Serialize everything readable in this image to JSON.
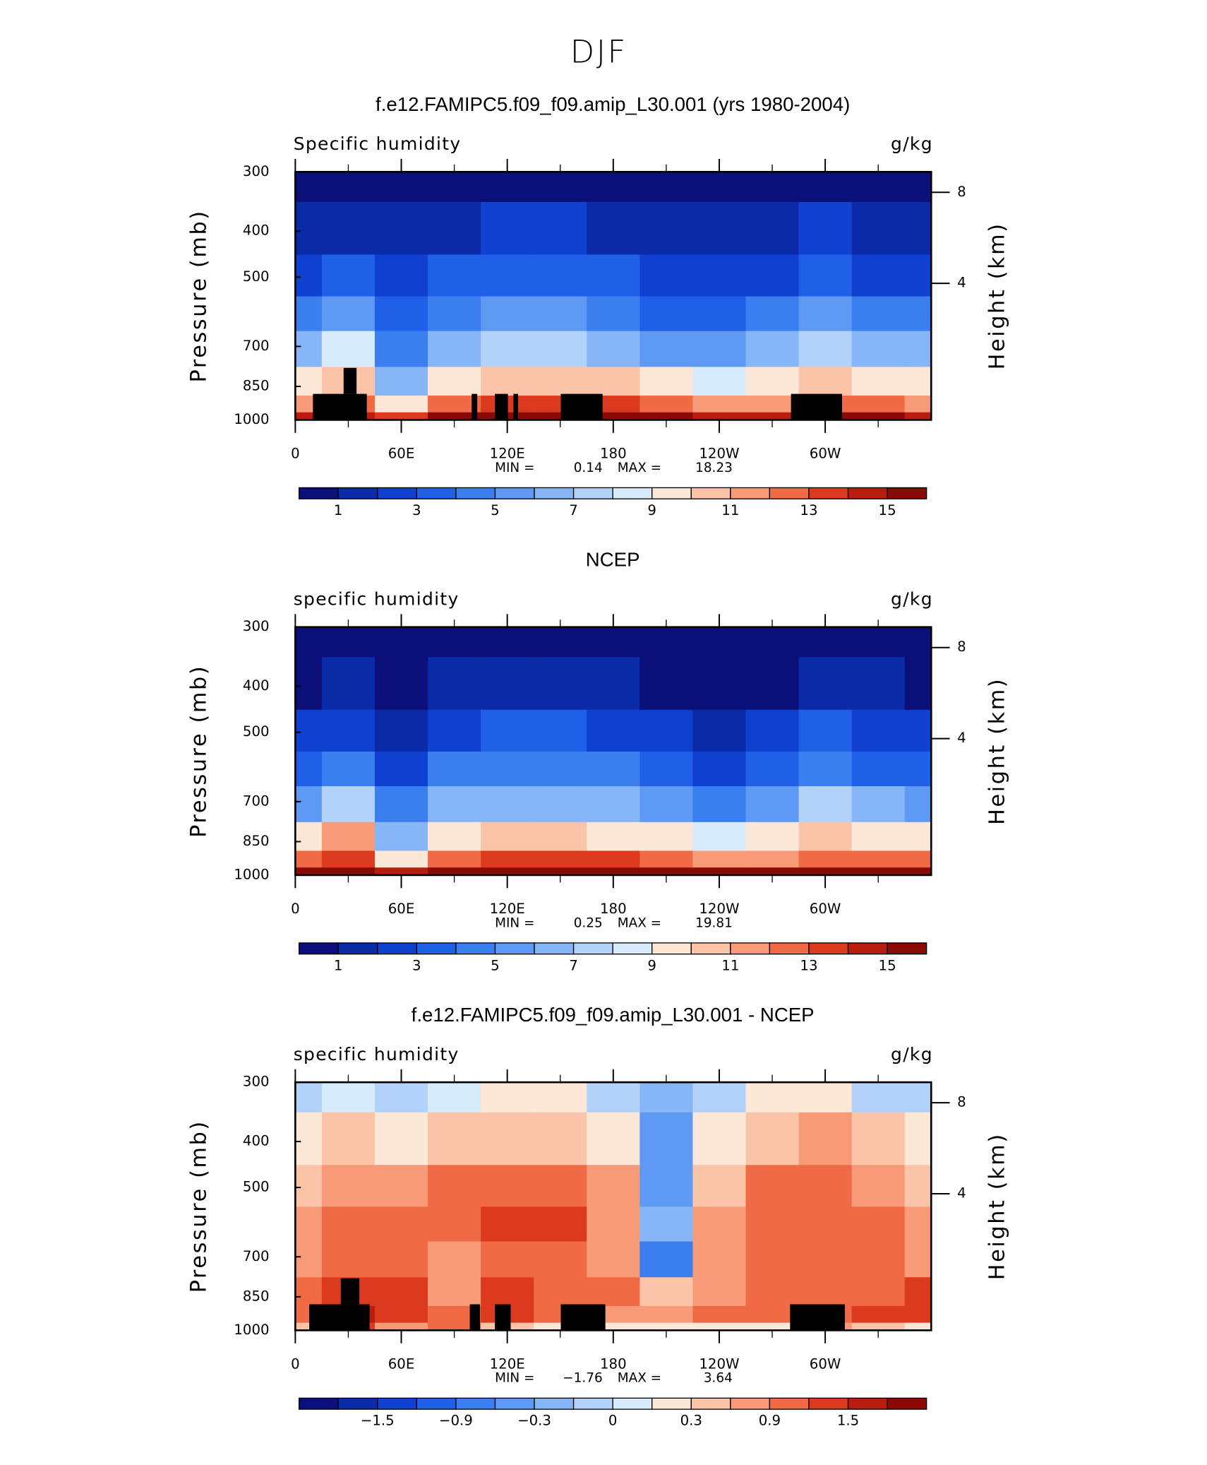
{
  "title": "DJF",
  "chart_data": [
    {
      "type": "contour",
      "title": "f.e12.FAMIPC5.f09_f09.amip_L30.001 (yrs 1980-2004)",
      "left_label": "Specific humidity",
      "right_label": "g/kg",
      "ylabel": "Pressure (mb)",
      "y2label": "Height (km)",
      "x": [
        0,
        30,
        60,
        90,
        120,
        150,
        180,
        210,
        240,
        270,
        300,
        330,
        360
      ],
      "xlim": [
        0,
        360
      ],
      "xticks": [
        0,
        {
          "value": 60,
          "label": "60E"
        },
        {
          "value": 120,
          "label": "120E"
        },
        180,
        {
          "value": 240,
          "label": "120W"
        },
        {
          "value": 300,
          "label": "60W"
        }
      ],
      "y": [
        1000,
        925,
        850,
        700,
        600,
        500,
        400,
        300
      ],
      "ylim": [
        1000,
        300
      ],
      "ylog": true,
      "yticks": [
        300,
        400,
        500,
        700,
        850,
        1000
      ],
      "y2lim": [
        -2,
        8.9
      ],
      "y2ticks": [
        4,
        8
      ],
      "values": [
        [
          14,
          14,
          13,
          15,
          16,
          16,
          16,
          15,
          14,
          14,
          15,
          15,
          14
        ],
        [
          11,
          12,
          9,
          12,
          13,
          13,
          13,
          12,
          11,
          11,
          12,
          12,
          11
        ],
        [
          9,
          10,
          6,
          9,
          10,
          10,
          10,
          9,
          8,
          9,
          10,
          9,
          9
        ],
        [
          6,
          8,
          4,
          6,
          7,
          7,
          6,
          5,
          5,
          6,
          7,
          6,
          6
        ],
        [
          4,
          5,
          3,
          4,
          5,
          5,
          4,
          3,
          3,
          4,
          5,
          4,
          4
        ],
        [
          2.5,
          3,
          2,
          3,
          3.5,
          3.5,
          3,
          2,
          2,
          2.5,
          3.5,
          2.5,
          2.5
        ],
        [
          1.5,
          1.5,
          1,
          1.5,
          2,
          2,
          1.5,
          1,
          1,
          1.5,
          2,
          1.5,
          1.5
        ],
        [
          0.5,
          0.5,
          0.5,
          0.5,
          0.6,
          0.7,
          0.5,
          0.3,
          0.3,
          0.4,
          0.6,
          0.5,
          0.4
        ]
      ],
      "levels": [
        1,
        2,
        3,
        4,
        5,
        6,
        7,
        8,
        9,
        10,
        11,
        12,
        13,
        14,
        15
      ],
      "colorbar_ticks": [
        1,
        3,
        5,
        7,
        9,
        11,
        13,
        15
      ],
      "colors": [
        "#0a0f7a",
        "#0b2aa8",
        "#1040d0",
        "#2060e8",
        "#3a7ef0",
        "#5e9af4",
        "#86b6f7",
        "#b2d2fa",
        "#d8ebfc",
        "#fde8d8",
        "#fbc4a8",
        "#f69a78",
        "#ef6a45",
        "#dc3a1e",
        "#b71c0e",
        "#8a0a05"
      ],
      "min_label": "MIN =",
      "min": 0.14,
      "max_label": "MAX =",
      "max": 18.23
    },
    {
      "type": "contour",
      "title": "NCEP",
      "left_label": "specific humidity",
      "right_label": "g/kg",
      "ylabel": "Pressure (mb)",
      "y2label": "Height (km)",
      "x": [
        0,
        30,
        60,
        90,
        120,
        150,
        180,
        210,
        240,
        270,
        300,
        330,
        360
      ],
      "xlim": [
        0,
        360
      ],
      "xticks": [
        0,
        {
          "value": 60,
          "label": "60E"
        },
        {
          "value": 120,
          "label": "120E"
        },
        180,
        {
          "value": 240,
          "label": "120W"
        },
        {
          "value": 300,
          "label": "60W"
        }
      ],
      "y": [
        1000,
        925,
        850,
        700,
        600,
        500,
        400,
        300
      ],
      "ylim": [
        1000,
        300
      ],
      "ylog": true,
      "yticks": [
        300,
        400,
        500,
        700,
        850,
        1000
      ],
      "y2lim": [
        -2,
        8.9
      ],
      "y2ticks": [
        4,
        8
      ],
      "values": [
        [
          15,
          15,
          14,
          16,
          17,
          17,
          17,
          16,
          15,
          15,
          16,
          16,
          15
        ],
        [
          12,
          13,
          9,
          12,
          13,
          13,
          13,
          12,
          11,
          11,
          12,
          12,
          12
        ],
        [
          9,
          11,
          6,
          9,
          10,
          10,
          9,
          9,
          8,
          9,
          10,
          9,
          9
        ],
        [
          5,
          7,
          4,
          6,
          6,
          6,
          6,
          5,
          4,
          5,
          7,
          6,
          5
        ],
        [
          3.5,
          4.5,
          2.5,
          4,
          4.5,
          4.5,
          4,
          3.5,
          2.5,
          3.5,
          4.5,
          3.5,
          3.5
        ],
        [
          2,
          2.5,
          1.5,
          2.5,
          3,
          3,
          2.5,
          2,
          1.5,
          2,
          3,
          2,
          2
        ],
        [
          0.8,
          1,
          0.8,
          1.2,
          1.5,
          1.5,
          1.2,
          0.8,
          0.5,
          0.8,
          1.2,
          1,
          0.8
        ],
        [
          0.3,
          0.3,
          0.3,
          0.4,
          0.5,
          0.5,
          0.4,
          0.3,
          0.25,
          0.3,
          0.4,
          0.3,
          0.3
        ]
      ],
      "levels": [
        1,
        2,
        3,
        4,
        5,
        6,
        7,
        8,
        9,
        10,
        11,
        12,
        13,
        14,
        15
      ],
      "colorbar_ticks": [
        1,
        3,
        5,
        7,
        9,
        11,
        13,
        15
      ],
      "colors": [
        "#0a0f7a",
        "#0b2aa8",
        "#1040d0",
        "#2060e8",
        "#3a7ef0",
        "#5e9af4",
        "#86b6f7",
        "#b2d2fa",
        "#d8ebfc",
        "#fde8d8",
        "#fbc4a8",
        "#f69a78",
        "#ef6a45",
        "#dc3a1e",
        "#b71c0e",
        "#8a0a05"
      ],
      "min_label": "MIN =",
      "min": 0.25,
      "max_label": "MAX =",
      "max": 19.81
    },
    {
      "type": "contour",
      "title": "f.e12.FAMIPC5.f09_f09.amip_L30.001 - NCEP",
      "left_label": "specific humidity",
      "right_label": "g/kg",
      "ylabel": "Pressure (mb)",
      "y2label": "Height (km)",
      "x": [
        0,
        30,
        60,
        90,
        120,
        150,
        180,
        210,
        240,
        270,
        300,
        330,
        360
      ],
      "xlim": [
        0,
        360
      ],
      "xticks": [
        0,
        {
          "value": 60,
          "label": "60E"
        },
        {
          "value": 120,
          "label": "120E"
        },
        180,
        {
          "value": 240,
          "label": "120W"
        },
        {
          "value": 300,
          "label": "60W"
        }
      ],
      "y": [
        1000,
        925,
        850,
        700,
        600,
        500,
        400,
        300
      ],
      "ylim": [
        1000,
        300
      ],
      "ylog": true,
      "yticks": [
        300,
        400,
        500,
        700,
        850,
        1000
      ],
      "y2lim": [
        -2,
        8.9
      ],
      "y2ticks": [
        4,
        8
      ],
      "values": [
        [
          0.3,
          1.2,
          0.6,
          0.9,
          0.3,
          0.2,
          0.2,
          0.2,
          0.2,
          0.2,
          0.6,
          0.3,
          0.2
        ],
        [
          1.0,
          1.6,
          1.4,
          1.0,
          1.2,
          0.9,
          0.8,
          0.6,
          0.9,
          1.0,
          1.0,
          1.2,
          1.4
        ],
        [
          1.0,
          1.3,
          1.4,
          0.6,
          1.2,
          1.0,
          0.9,
          0.3,
          0.8,
          1.1,
          1.0,
          1.0,
          1.2
        ],
        [
          0.7,
          1.0,
          1.0,
          0.6,
          1.1,
          1.0,
          0.8,
          -0.7,
          0.8,
          1.0,
          0.9,
          0.9,
          0.8
        ],
        [
          0.6,
          1.0,
          1.0,
          0.9,
          1.2,
          1.3,
          0.8,
          -0.3,
          0.7,
          1.0,
          1.1,
          1.0,
          0.7
        ],
        [
          0.4,
          0.8,
          0.7,
          0.9,
          1.0,
          1.1,
          0.6,
          -0.4,
          0.5,
          0.9,
          1.1,
          0.8,
          0.5
        ],
        [
          0.1,
          0.3,
          0.2,
          0.4,
          0.5,
          0.5,
          0.2,
          -0.5,
          0.1,
          0.5,
          0.6,
          0.3,
          0.1
        ],
        [
          -0.1,
          0.05,
          -0.1,
          0.05,
          0.2,
          0.1,
          -0.1,
          -0.3,
          -0.1,
          0.2,
          0.1,
          -0.1,
          -0.1
        ]
      ],
      "levels": [
        -1.8,
        -1.5,
        -1.2,
        -0.9,
        -0.6,
        -0.3,
        -0.1,
        0,
        0.1,
        0.3,
        0.6,
        0.9,
        1.2,
        1.5,
        1.8
      ],
      "colorbar_ticks": [
        {
          "value": -1.5,
          "label": "−1.5"
        },
        {
          "value": -0.9,
          "label": "−0.9"
        },
        {
          "value": -0.3,
          "label": "−0.3"
        },
        0,
        0.3,
        0.9,
        1.5
      ],
      "colors": [
        "#0a0f7a",
        "#0b2aa8",
        "#1040d0",
        "#2060e8",
        "#3a7ef0",
        "#5e9af4",
        "#86b6f7",
        "#b2d2fa",
        "#d8ebfc",
        "#fde8d8",
        "#fbc4a8",
        "#f69a78",
        "#ef6a45",
        "#dc3a1e",
        "#b71c0e",
        "#8a0a05"
      ],
      "min_label": "MIN =",
      "min": {
        "value": -1.76,
        "label": "−1.76"
      },
      "max_label": "MAX =",
      "max": 3.64
    }
  ]
}
